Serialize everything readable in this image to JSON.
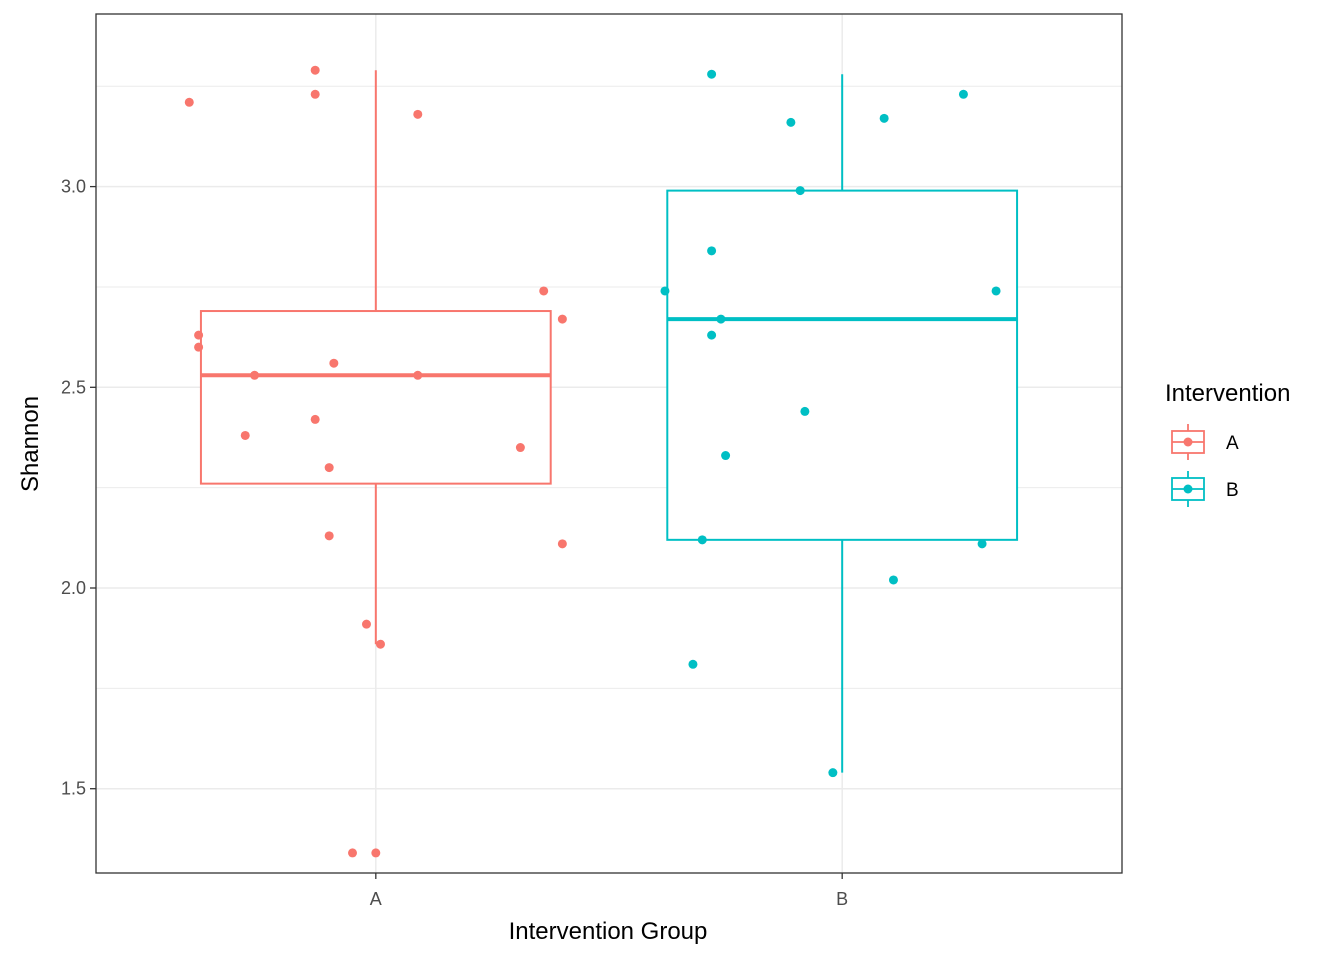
{
  "chart_data": {
    "type": "boxplot",
    "xlabel": "Intervention Group",
    "ylabel": "Shannon",
    "ylim": [
      1.29,
      3.43
    ],
    "yticks": [
      1.5,
      2.0,
      2.5,
      3.0
    ],
    "ytick_labels": [
      "1.5",
      "2.0",
      "2.5",
      "3.0"
    ],
    "grid": true,
    "categories": [
      "A",
      "B"
    ],
    "legend": {
      "title": "Intervention",
      "position": "right",
      "entries": [
        "A",
        "B"
      ]
    },
    "series": [
      {
        "name": "A",
        "color": "#F8766D",
        "box": {
          "lower_whisker": 1.86,
          "q1": 2.26,
          "median": 2.53,
          "q3": 2.69,
          "upper_whisker": 3.29
        },
        "points": [
          {
            "jitter": -0.4,
            "y": 3.21
          },
          {
            "jitter": -0.13,
            "y": 3.29
          },
          {
            "jitter": -0.13,
            "y": 3.23
          },
          {
            "jitter": 0.09,
            "y": 3.18
          },
          {
            "jitter": -0.38,
            "y": 2.63
          },
          {
            "jitter": -0.38,
            "y": 2.6
          },
          {
            "jitter": -0.26,
            "y": 2.53
          },
          {
            "jitter": -0.09,
            "y": 2.56
          },
          {
            "jitter": 0.09,
            "y": 2.53
          },
          {
            "jitter": 0.36,
            "y": 2.74
          },
          {
            "jitter": 0.4,
            "y": 2.67
          },
          {
            "jitter": -0.28,
            "y": 2.38
          },
          {
            "jitter": -0.13,
            "y": 2.42
          },
          {
            "jitter": 0.31,
            "y": 2.35
          },
          {
            "jitter": -0.1,
            "y": 2.3
          },
          {
            "jitter": -0.1,
            "y": 2.13
          },
          {
            "jitter": 0.4,
            "y": 2.11
          },
          {
            "jitter": -0.02,
            "y": 1.91
          },
          {
            "jitter": 0.01,
            "y": 1.86
          },
          {
            "jitter": -0.05,
            "y": 1.34
          },
          {
            "jitter": 0.0,
            "y": 1.34
          }
        ]
      },
      {
        "name": "B",
        "color": "#00BFC4",
        "box": {
          "lower_whisker": 1.54,
          "q1": 2.12,
          "median": 2.67,
          "q3": 2.99,
          "upper_whisker": 3.28
        },
        "points": [
          {
            "jitter": -0.28,
            "y": 3.28
          },
          {
            "jitter": 0.26,
            "y": 3.23
          },
          {
            "jitter": -0.11,
            "y": 3.16
          },
          {
            "jitter": 0.09,
            "y": 3.17
          },
          {
            "jitter": -0.09,
            "y": 2.99
          },
          {
            "jitter": -0.28,
            "y": 2.84
          },
          {
            "jitter": -0.38,
            "y": 2.74
          },
          {
            "jitter": 0.33,
            "y": 2.74
          },
          {
            "jitter": -0.26,
            "y": 2.67
          },
          {
            "jitter": -0.28,
            "y": 2.63
          },
          {
            "jitter": -0.08,
            "y": 2.44
          },
          {
            "jitter": -0.25,
            "y": 2.33
          },
          {
            "jitter": -0.3,
            "y": 2.12
          },
          {
            "jitter": 0.3,
            "y": 2.11
          },
          {
            "jitter": 0.11,
            "y": 2.02
          },
          {
            "jitter": -0.32,
            "y": 1.81
          },
          {
            "jitter": -0.02,
            "y": 1.54
          }
        ]
      }
    ]
  }
}
